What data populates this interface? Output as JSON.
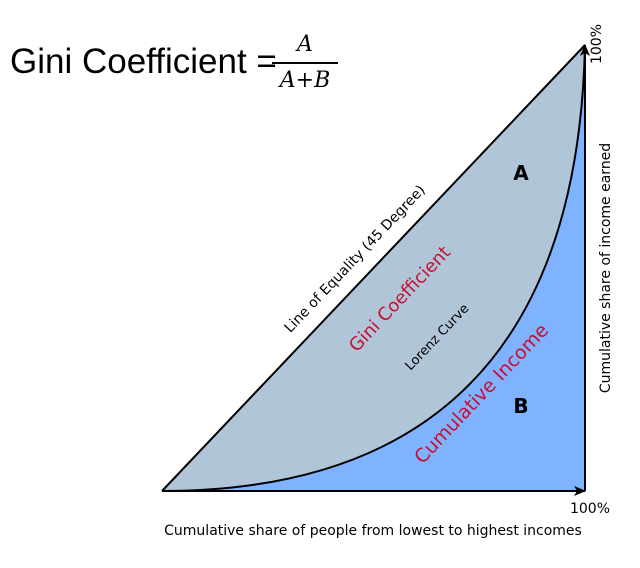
{
  "formula": {
    "lhs": "Gini Coefficient =",
    "numerator": "A",
    "denominator": "A+B"
  },
  "labels": {
    "line_of_equality": "Line of Equality (45 Degree)",
    "gini_coefficient": "Gini Coefficient",
    "lorenz_curve": "Lorenz Curve",
    "cumulative_income": "Cumulative Income",
    "area_a": "A",
    "area_b": "B",
    "x_axis": "Cumulative share of people from lowest to highest incomes",
    "y_axis": "Cumulative share of income earned",
    "x_max": "100%",
    "y_max": "100%"
  },
  "colors": {
    "area_a": "#b1c5d8",
    "area_b": "#80b3ff",
    "red_text": "#c8102e",
    "line": "#000000"
  }
}
